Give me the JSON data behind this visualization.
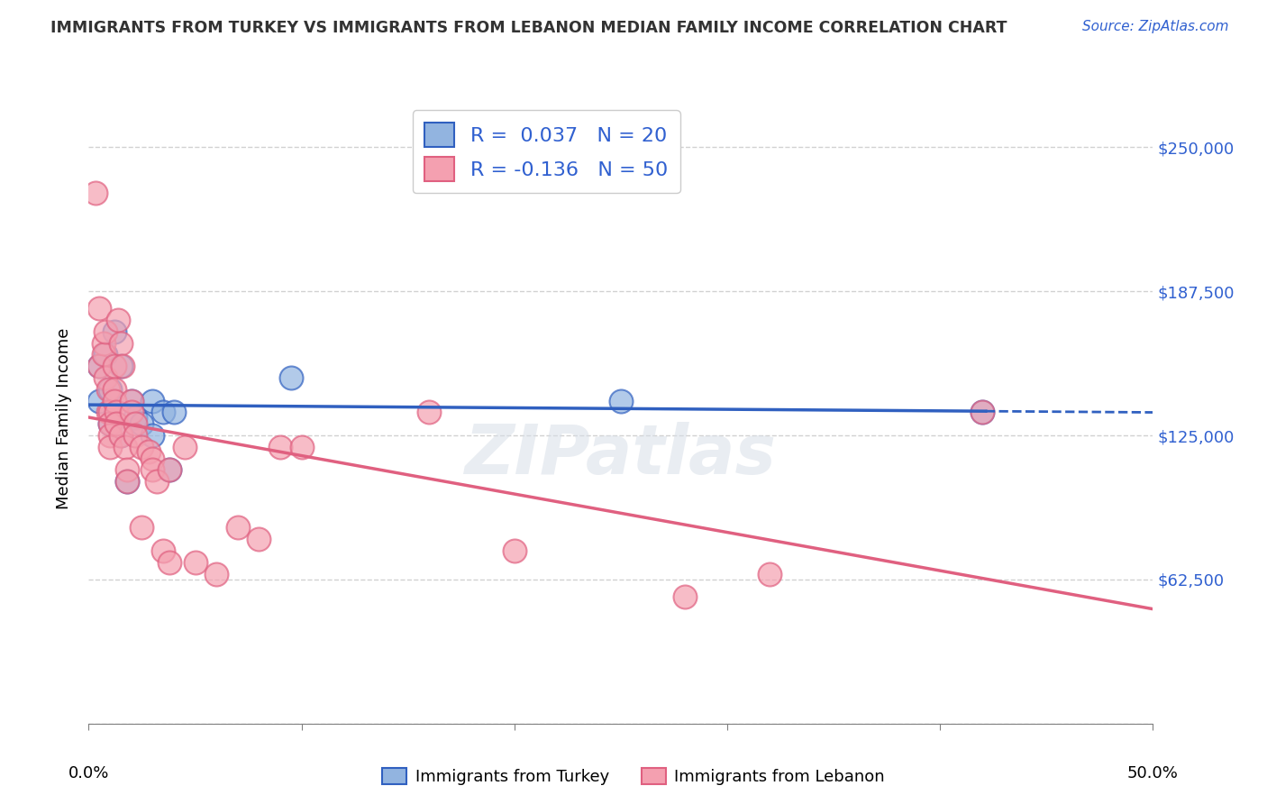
{
  "title": "IMMIGRANTS FROM TURKEY VS IMMIGRANTS FROM LEBANON MEDIAN FAMILY INCOME CORRELATION CHART",
  "source": "Source: ZipAtlas.com",
  "ylabel": "Median Family Income",
  "yticks": [
    0,
    62500,
    125000,
    187500,
    250000
  ],
  "ytick_labels": [
    "",
    "$62,500",
    "$125,000",
    "$187,500",
    "$250,000"
  ],
  "xlim": [
    0,
    0.5
  ],
  "ylim": [
    0,
    265000
  ],
  "legend_r_turkey": "R =  0.037",
  "legend_n_turkey": "N = 20",
  "legend_r_lebanon": "R = -0.136",
  "legend_n_lebanon": "N = 50",
  "turkey_color": "#92b4e0",
  "lebanon_color": "#f4a0b0",
  "turkey_line_color": "#3060c0",
  "lebanon_line_color": "#e06080",
  "background_color": "#ffffff",
  "turkey_x": [
    0.005,
    0.005,
    0.008,
    0.01,
    0.01,
    0.012,
    0.015,
    0.015,
    0.018,
    0.02,
    0.022,
    0.025,
    0.03,
    0.03,
    0.035,
    0.038,
    0.04,
    0.095,
    0.25,
    0.42
  ],
  "turkey_y": [
    140000,
    155000,
    160000,
    145000,
    130000,
    170000,
    155000,
    125000,
    105000,
    140000,
    133000,
    130000,
    140000,
    125000,
    135000,
    110000,
    135000,
    150000,
    140000,
    135000
  ],
  "lebanon_x": [
    0.003,
    0.005,
    0.005,
    0.007,
    0.007,
    0.008,
    0.008,
    0.009,
    0.009,
    0.01,
    0.01,
    0.01,
    0.01,
    0.012,
    0.012,
    0.012,
    0.013,
    0.013,
    0.014,
    0.015,
    0.015,
    0.016,
    0.017,
    0.018,
    0.018,
    0.02,
    0.02,
    0.022,
    0.022,
    0.025,
    0.025,
    0.028,
    0.03,
    0.03,
    0.032,
    0.035,
    0.038,
    0.038,
    0.045,
    0.05,
    0.06,
    0.07,
    0.08,
    0.09,
    0.1,
    0.16,
    0.2,
    0.28,
    0.32,
    0.42
  ],
  "lebanon_y": [
    230000,
    180000,
    155000,
    165000,
    160000,
    170000,
    150000,
    145000,
    135000,
    135000,
    130000,
    125000,
    120000,
    155000,
    145000,
    140000,
    135000,
    130000,
    175000,
    165000,
    125000,
    155000,
    120000,
    110000,
    105000,
    140000,
    135000,
    130000,
    125000,
    120000,
    85000,
    118000,
    115000,
    110000,
    105000,
    75000,
    70000,
    110000,
    120000,
    70000,
    65000,
    85000,
    80000,
    120000,
    120000,
    135000,
    75000,
    55000,
    65000,
    135000
  ]
}
